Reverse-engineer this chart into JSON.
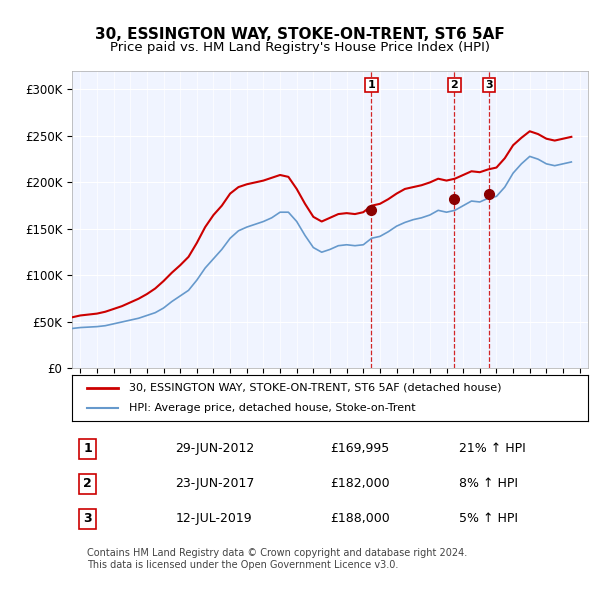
{
  "title": "30, ESSINGTON WAY, STOKE-ON-TRENT, ST6 5AF",
  "subtitle": "Price paid vs. HM Land Registry's House Price Index (HPI)",
  "ylabel": "",
  "xlim_start": 1994.5,
  "xlim_end": 2025.5,
  "ylim": [
    0,
    320000
  ],
  "yticks": [
    0,
    50000,
    100000,
    150000,
    200000,
    250000,
    300000
  ],
  "ytick_labels": [
    "£0",
    "£50K",
    "£100K",
    "£150K",
    "£200K",
    "£250K",
    "£300K"
  ],
  "sale_dates": [
    2012.493,
    2017.477,
    2019.533
  ],
  "sale_prices": [
    169995,
    182000,
    188000
  ],
  "sale_labels": [
    "1",
    "2",
    "3"
  ],
  "vline_color": "#cc0000",
  "vline_style": "--",
  "hpi_color": "#6699cc",
  "price_color": "#cc0000",
  "background_color": "#f0f4ff",
  "plot_bg_color": "#f0f4ff",
  "legend_entry1": "30, ESSINGTON WAY, STOKE-ON-TRENT, ST6 5AF (detached house)",
  "legend_entry2": "HPI: Average price, detached house, Stoke-on-Trent",
  "table_rows": [
    {
      "num": "1",
      "date": "29-JUN-2012",
      "price": "£169,995",
      "hpi": "21% ↑ HPI"
    },
    {
      "num": "2",
      "date": "23-JUN-2017",
      "price": "£182,000",
      "hpi": "8% ↑ HPI"
    },
    {
      "num": "3",
      "date": "12-JUL-2019",
      "price": "£188,000",
      "hpi": "5% ↑ HPI"
    }
  ],
  "footer": "Contains HM Land Registry data © Crown copyright and database right 2024.\nThis data is licensed under the Open Government Licence v3.0.",
  "title_fontsize": 11,
  "subtitle_fontsize": 9.5,
  "tick_fontsize": 8.5,
  "hpi_data_x": [
    1994.5,
    1995,
    1995.5,
    1996,
    1996.5,
    1997,
    1997.5,
    1998,
    1998.5,
    1999,
    1999.5,
    2000,
    2000.5,
    2001,
    2001.5,
    2002,
    2002.5,
    2003,
    2003.5,
    2004,
    2004.5,
    2005,
    2005.5,
    2006,
    2006.5,
    2007,
    2007.5,
    2008,
    2008.5,
    2009,
    2009.5,
    2010,
    2010.5,
    2011,
    2011.5,
    2012,
    2012.5,
    2013,
    2013.5,
    2014,
    2014.5,
    2015,
    2015.5,
    2016,
    2016.5,
    2017,
    2017.5,
    2018,
    2018.5,
    2019,
    2019.5,
    2020,
    2020.5,
    2021,
    2021.5,
    2022,
    2022.5,
    2023,
    2023.5,
    2024,
    2024.5
  ],
  "hpi_data_y": [
    43000,
    44000,
    44500,
    45000,
    46000,
    48000,
    50000,
    52000,
    54000,
    57000,
    60000,
    65000,
    72000,
    78000,
    84000,
    95000,
    108000,
    118000,
    128000,
    140000,
    148000,
    152000,
    155000,
    158000,
    162000,
    168000,
    168000,
    158000,
    143000,
    130000,
    125000,
    128000,
    132000,
    133000,
    132000,
    133000,
    140000,
    142000,
    147000,
    153000,
    157000,
    160000,
    162000,
    165000,
    170000,
    168000,
    170000,
    175000,
    180000,
    179000,
    183000,
    185000,
    195000,
    210000,
    220000,
    228000,
    225000,
    220000,
    218000,
    220000,
    222000
  ],
  "price_data_x": [
    1994.5,
    1995,
    1995.5,
    1996,
    1996.5,
    1997,
    1997.5,
    1998,
    1998.5,
    1999,
    1999.5,
    2000,
    2000.5,
    2001,
    2001.5,
    2002,
    2002.5,
    2003,
    2003.5,
    2004,
    2004.5,
    2005,
    2005.5,
    2006,
    2006.5,
    2007,
    2007.5,
    2008,
    2008.5,
    2009,
    2009.5,
    2010,
    2010.5,
    2011,
    2011.5,
    2012,
    2012.5,
    2013,
    2013.5,
    2014,
    2014.5,
    2015,
    2015.5,
    2016,
    2016.5,
    2017,
    2017.5,
    2018,
    2018.5,
    2019,
    2019.5,
    2020,
    2020.5,
    2021,
    2021.5,
    2022,
    2022.5,
    2023,
    2023.5,
    2024,
    2024.5
  ],
  "price_data_y": [
    55000,
    57000,
    58000,
    59000,
    61000,
    64000,
    67000,
    71000,
    75000,
    80000,
    86000,
    94000,
    103000,
    111000,
    120000,
    135000,
    152000,
    165000,
    175000,
    188000,
    195000,
    198000,
    200000,
    202000,
    205000,
    208000,
    206000,
    193000,
    177000,
    163000,
    158000,
    162000,
    166000,
    167000,
    166000,
    168000,
    175000,
    177000,
    182000,
    188000,
    193000,
    195000,
    197000,
    200000,
    204000,
    202000,
    204000,
    208000,
    212000,
    211000,
    214000,
    216000,
    226000,
    240000,
    248000,
    255000,
    252000,
    247000,
    245000,
    247000,
    249000
  ]
}
